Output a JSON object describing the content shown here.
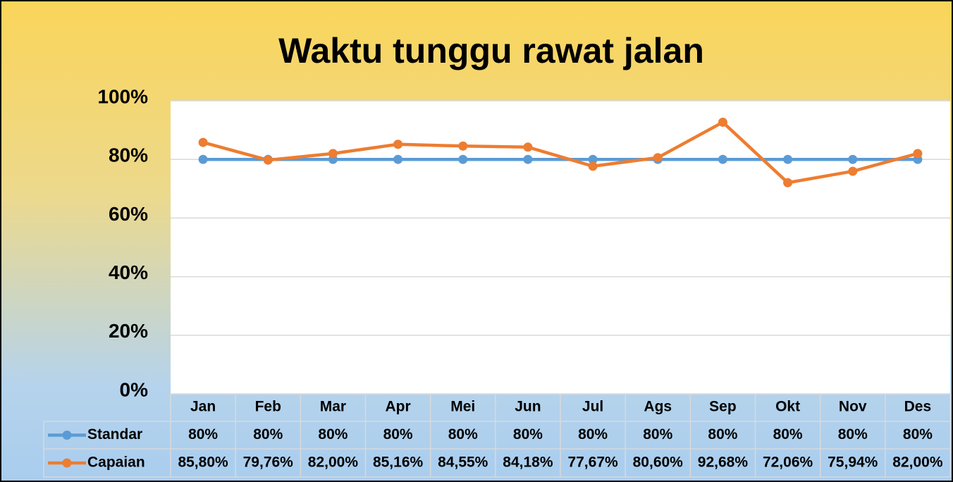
{
  "chart_data": {
    "type": "line",
    "title": "Waktu tunggu rawat jalan",
    "categories": [
      "Jan",
      "Feb",
      "Mar",
      "Apr",
      "Mei",
      "Jun",
      "Jul",
      "Ags",
      "Sep",
      "Okt",
      "Nov",
      "Des"
    ],
    "series": [
      {
        "name": "Standar",
        "color": "#5b9bd5",
        "values": [
          80,
          80,
          80,
          80,
          80,
          80,
          80,
          80,
          80,
          80,
          80,
          80
        ],
        "value_labels": [
          "80%",
          "80%",
          "80%",
          "80%",
          "80%",
          "80%",
          "80%",
          "80%",
          "80%",
          "80%",
          "80%",
          "80%"
        ]
      },
      {
        "name": "Capaian",
        "color": "#ed7d31",
        "values": [
          85.8,
          79.76,
          82.0,
          85.16,
          84.55,
          84.18,
          77.67,
          80.6,
          92.68,
          72.06,
          75.94,
          82.0
        ],
        "value_labels": [
          "85,80%",
          "79,76%",
          "82,00%",
          "85,16%",
          "84,55%",
          "84,18%",
          "77,67%",
          "80,60%",
          "92,68%",
          "72,06%",
          "75,94%",
          "82,00%"
        ]
      }
    ],
    "ylim": [
      0,
      100
    ],
    "yticks": [
      {
        "value": 0,
        "label": "0%"
      },
      {
        "value": 20,
        "label": "20%"
      },
      {
        "value": 40,
        "label": "40%"
      },
      {
        "value": 60,
        "label": "60%"
      },
      {
        "value": 80,
        "label": "80%"
      },
      {
        "value": 100,
        "label": "100%"
      }
    ],
    "grid": true
  }
}
